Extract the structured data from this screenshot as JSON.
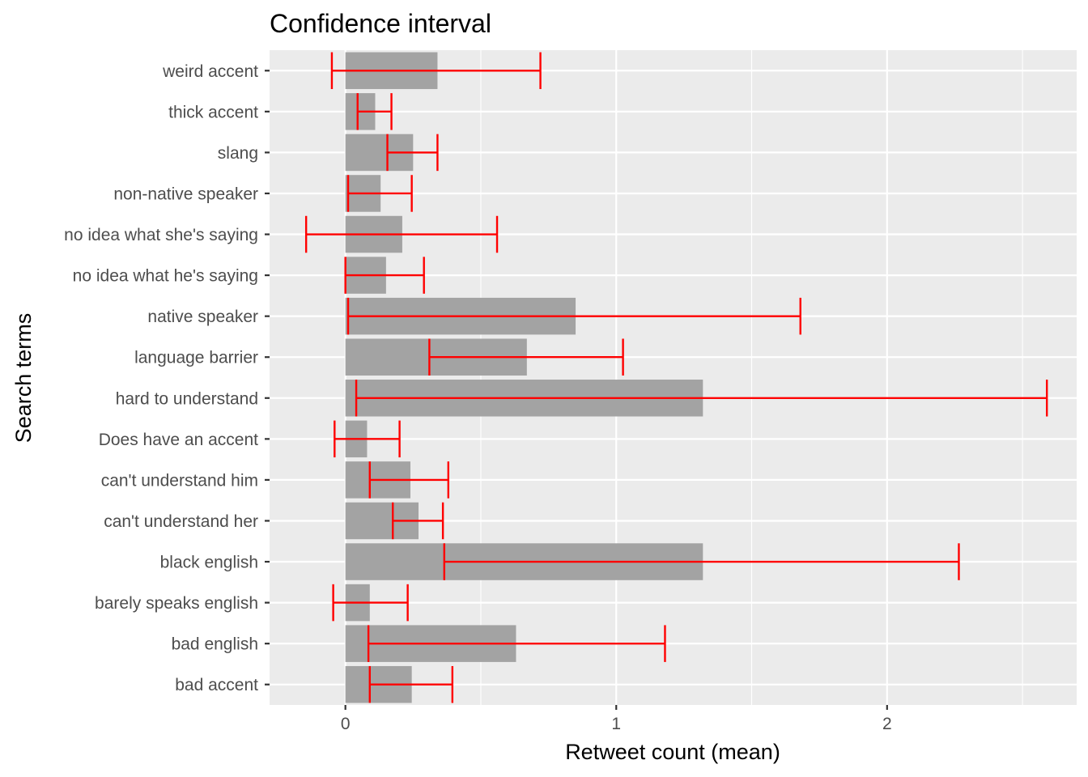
{
  "chart_data": {
    "type": "bar",
    "orientation": "horizontal",
    "title": "Confidence interval",
    "xlabel": "Retweet count (mean)",
    "ylabel": "Search terms",
    "xlim": [
      -0.28,
      2.7
    ],
    "x_ticks": [
      0,
      1,
      2
    ],
    "grid": true,
    "colors": {
      "bar": "#a3a3a3",
      "error_bar": "#ff0000",
      "panel": "#ebebeb",
      "grid": "#ffffff"
    },
    "categories": [
      "weird accent",
      "thick accent",
      "slang",
      "non-native speaker",
      "no idea what she's saying",
      "no idea what he's saying",
      "native speaker",
      "language barrier",
      "hard to understand",
      "Does have an accent",
      "can't understand him",
      "can't understand her",
      "black english",
      "barely speaks english",
      "bad english",
      "bad accent"
    ],
    "values": [
      0.34,
      0.11,
      0.25,
      0.13,
      0.21,
      0.15,
      0.85,
      0.67,
      1.32,
      0.08,
      0.24,
      0.27,
      1.32,
      0.09,
      0.63,
      0.245
    ],
    "ci_low": [
      -0.05,
      0.045,
      0.155,
      0.01,
      -0.145,
      0.0,
      0.01,
      0.31,
      0.04,
      -0.04,
      0.09,
      0.175,
      0.365,
      -0.045,
      0.085,
      0.09
    ],
    "ci_high": [
      0.72,
      0.17,
      0.34,
      0.245,
      0.56,
      0.29,
      1.68,
      1.025,
      2.59,
      0.2,
      0.38,
      0.36,
      2.265,
      0.23,
      1.18,
      0.395
    ]
  }
}
